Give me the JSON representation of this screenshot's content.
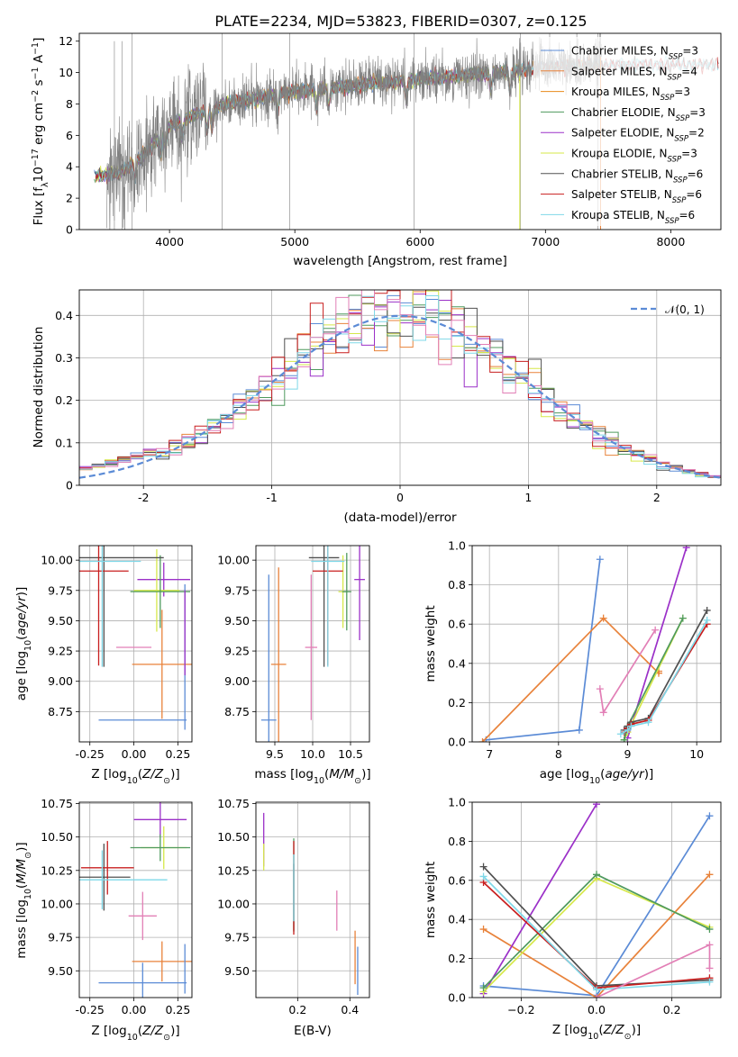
{
  "figure": {
    "title": "PLATE=2234, MJD=53823, FIBERID=0307, z=0.125"
  },
  "colors": {
    "data": "#808080",
    "Chabrier MILES": "#5b8bd6",
    "Salpeter MILES": "#e8823a",
    "Kroupa MILES": "#e88a1a",
    "Chabrier ELODIE": "#4f9a5e",
    "Salpeter ELODIE": "#9b30c8",
    "Kroupa ELODIE": "#d6e84a",
    "Chabrier STELIB": "#505050",
    "Salpeter STELIB": "#c81e1e",
    "Kroupa STELIB": "#7fd8e8",
    "pink": "#e27fb6",
    "gauss": "#5b8bd6"
  },
  "chart_data": [
    {
      "id": "spectrum",
      "type": "line",
      "title": "PLATE=2234, MJD=53823, FIBERID=0307, z=0.125",
      "xlabel": "wavelength [Angstrom, rest frame]",
      "ylabel": "Flux [f_λ 10^-17 erg cm^-2 s^-1 A^-1]",
      "xlim": [
        3280,
        8400
      ],
      "ylim": [
        0,
        12.5
      ],
      "xticks": [
        4000,
        5000,
        6000,
        7000,
        8000
      ],
      "yticks": [
        0,
        2,
        4,
        6,
        8,
        10,
        12
      ],
      "legend_position": "right",
      "legend": [
        "Chabrier MILES, N_SSP=3",
        "Salpeter MILES, N_SSP=4",
        "Kroupa MILES, N_SSP=3",
        "Chabrier ELODIE, N_SSP=3",
        "Salpeter ELODIE, N_SSP=2",
        "Kroupa ELODIE, N_SSP=3",
        "Chabrier STELIB, N_SSP=6",
        "Salpeter STELIB, N_SSP=6",
        "Kroupa STELIB, N_SSP=6"
      ],
      "continuum": {
        "x": [
          3400,
          3600,
          3800,
          4000,
          4200,
          4500,
          5000,
          5500,
          6000,
          6500,
          7000,
          7400
        ],
        "y": [
          3.4,
          3.6,
          4.8,
          6.6,
          7.3,
          8.1,
          8.8,
          9.2,
          9.6,
          9.9,
          10.3,
          10.5
        ]
      },
      "noisy_data_range": [
        3500,
        7450
      ]
    },
    {
      "id": "residuals",
      "type": "bar",
      "xlabel": "(data-model)/error",
      "ylabel": "Normed distribution",
      "xlim": [
        -2.5,
        2.5
      ],
      "ylim": [
        0,
        0.46
      ],
      "xticks": [
        -2,
        -1,
        0,
        1,
        2
      ],
      "yticks": [
        0.0,
        0.1,
        0.2,
        0.3,
        0.4
      ],
      "grid": true,
      "legend": [
        "𝒩(0, 1)"
      ],
      "legend_position": "top-right",
      "bin_width": 0.1
    },
    {
      "id": "age_vs_Z",
      "type": "scatter",
      "xlabel": "Z [log10(Z/Z⊙)]",
      "ylabel": "age [log10(age/yr)]",
      "xlim": [
        -0.31,
        0.33
      ],
      "ylim": [
        8.5,
        10.12
      ],
      "xticks": [
        -0.25,
        0.0,
        0.25
      ],
      "yticks": [
        8.75,
        9.0,
        9.25,
        9.5,
        9.75,
        10.0
      ],
      "grid": true
    },
    {
      "id": "age_vs_mass",
      "type": "scatter",
      "xlabel": "mass [log10(M/M⊙)]",
      "xlim": [
        9.25,
        10.75
      ],
      "ylim": [
        8.5,
        10.12
      ],
      "xticks": [
        9.5,
        10.0,
        10.5
      ],
      "yticks": [
        8.75,
        9.0,
        9.25,
        9.5,
        9.75,
        10.0
      ],
      "grid": true
    },
    {
      "id": "weight_vs_age",
      "type": "line",
      "xlabel": "age [log10(age/yr)]",
      "ylabel": "mass weight",
      "xlim": [
        6.75,
        10.35
      ],
      "ylim": [
        0,
        1.0
      ],
      "xticks": [
        7,
        8,
        9,
        10
      ],
      "yticks": [
        0.0,
        0.2,
        0.4,
        0.6,
        0.8,
        1.0
      ],
      "grid": true,
      "series": [
        {
          "name": "Chabrier MILES",
          "x": [
            6.95,
            8.3,
            8.6
          ],
          "y": [
            0.01,
            0.06,
            0.93
          ]
        },
        {
          "name": "Salpeter MILES",
          "x": [
            6.9,
            8.65,
            9.45,
            9.45
          ],
          "y": [
            0.0,
            0.63,
            0.35,
            0.36
          ]
        },
        {
          "name": "Salpeter ELODIE",
          "x": [
            9.0,
            9.85
          ],
          "y": [
            0.02,
            0.99
          ]
        },
        {
          "name": "Kroupa ELODIE",
          "x": [
            8.95,
            9.0,
            9.8
          ],
          "y": [
            0.01,
            0.05,
            0.63
          ]
        },
        {
          "name": "Chabrier ELODIE",
          "x": [
            8.95,
            9.0,
            9.8
          ],
          "y": [
            0.01,
            0.08,
            0.63
          ]
        },
        {
          "name": "Chabrier STELIB",
          "x": [
            8.95,
            9.0,
            9.05,
            9.3,
            10.15
          ],
          "y": [
            0.06,
            0.08,
            0.1,
            0.12,
            0.67
          ]
        },
        {
          "name": "Salpeter STELIB",
          "x": [
            8.95,
            9.0,
            9.05,
            9.3,
            10.15
          ],
          "y": [
            0.05,
            0.07,
            0.09,
            0.11,
            0.6
          ]
        },
        {
          "name": "Kroupa STELIB",
          "x": [
            8.9,
            9.0,
            9.05,
            9.3,
            10.15
          ],
          "y": [
            0.04,
            0.06,
            0.08,
            0.1,
            0.62
          ]
        },
        {
          "name": "pink",
          "x": [
            8.6,
            8.65,
            9.4
          ],
          "y": [
            0.27,
            0.15,
            0.57
          ]
        }
      ]
    },
    {
      "id": "mass_vs_Z",
      "type": "scatter",
      "xlabel": "Z [log10(Z/Z⊙)]",
      "ylabel": "mass [log10(M/M⊙)]",
      "xlim": [
        -0.31,
        0.33
      ],
      "ylim": [
        9.3,
        10.76
      ],
      "xticks": [
        -0.25,
        0.0,
        0.25
      ],
      "yticks": [
        9.5,
        9.75,
        10.0,
        10.25,
        10.5,
        10.75
      ],
      "grid": true
    },
    {
      "id": "mass_vs_ebv",
      "type": "scatter",
      "xlabel": "E(B-V)",
      "xlim": [
        0.04,
        0.475
      ],
      "ylim": [
        9.3,
        10.76
      ],
      "xticks": [
        0.2,
        0.4
      ],
      "yticks": [
        9.5,
        9.75,
        10.0,
        10.25,
        10.5,
        10.75
      ],
      "grid": true
    },
    {
      "id": "weight_vs_Z",
      "type": "line",
      "xlabel": "Z [log10(Z/Z⊙)]",
      "ylabel": "mass weight",
      "xlim": [
        -0.33,
        0.33
      ],
      "ylim": [
        0,
        1.0
      ],
      "xticks": [
        -0.2,
        0.0,
        0.2
      ],
      "yticks": [
        0.0,
        0.2,
        0.4,
        0.6,
        0.8,
        1.0
      ],
      "grid": true,
      "series": [
        {
          "name": "Chabrier MILES",
          "x": [
            -0.3,
            0.0,
            0.3
          ],
          "y": [
            0.06,
            0.01,
            0.93
          ]
        },
        {
          "name": "Salpeter MILES",
          "x": [
            -0.3,
            0.0,
            0.3
          ],
          "y": [
            0.35,
            0.0,
            0.63
          ]
        },
        {
          "name": "Salpeter ELODIE",
          "x": [
            -0.3,
            0.0
          ],
          "y": [
            0.02,
            0.99
          ]
        },
        {
          "name": "Kroupa ELODIE",
          "x": [
            -0.3,
            0.0,
            0.3
          ],
          "y": [
            0.03,
            0.61,
            0.36
          ]
        },
        {
          "name": "Chabrier ELODIE",
          "x": [
            -0.3,
            0.0,
            0.3
          ],
          "y": [
            0.05,
            0.63,
            0.35
          ]
        },
        {
          "name": "Chabrier STELIB",
          "x": [
            -0.3,
            0.0,
            0.3
          ],
          "y": [
            0.67,
            0.06,
            0.09
          ]
        },
        {
          "name": "Salpeter STELIB",
          "x": [
            -0.3,
            0.0,
            0.3
          ],
          "y": [
            0.59,
            0.05,
            0.1
          ]
        },
        {
          "name": "Kroupa STELIB",
          "x": [
            -0.3,
            0.0,
            0.3
          ],
          "y": [
            0.62,
            0.04,
            0.08
          ]
        },
        {
          "name": "pink",
          "x": [
            0.0,
            0.3,
            0.3
          ],
          "y": [
            0.0,
            0.27,
            0.15
          ]
        }
      ]
    }
  ]
}
